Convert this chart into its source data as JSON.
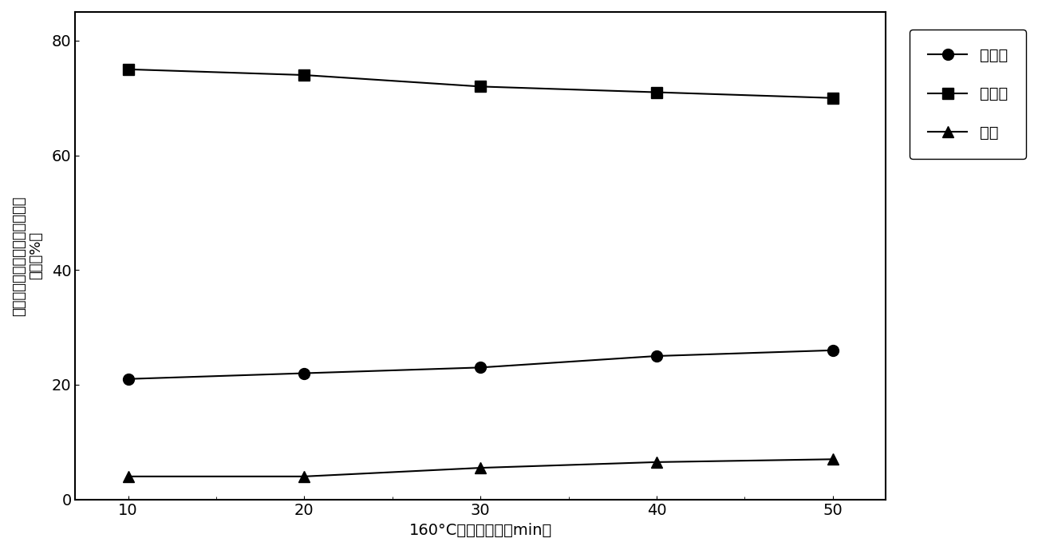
{
  "x": [
    10,
    20,
    30,
    40,
    50
  ],
  "supernatant": [
    21,
    22,
    23,
    25,
    26
  ],
  "solid_residue": [
    75,
    74,
    72,
    71,
    70
  ],
  "loss": [
    4,
    4,
    5.5,
    6.5,
    7
  ],
  "xlabel": "160°C，反应时间（min）",
  "ylabel_line1": "各组分木聚糖占反应前木聚糖的",
  "ylabel_line2": "比例（%）",
  "legend_supernatant": "上清液",
  "legend_solid": "固体渣",
  "legend_loss": "损失",
  "ylim": [
    0,
    85
  ],
  "xlim": [
    7,
    53
  ],
  "yticks": [
    0,
    20,
    40,
    60,
    80
  ],
  "xticks": [
    10,
    20,
    30,
    40,
    50
  ],
  "line_color": "#000000",
  "background_color": "#ffffff",
  "marker_circle": "o",
  "marker_square": "s",
  "marker_triangle": "^",
  "marker_size": 10,
  "line_width": 1.5,
  "label_fontsize": 14,
  "tick_fontsize": 14,
  "legend_fontsize": 14,
  "ylabel_fontsize": 13
}
